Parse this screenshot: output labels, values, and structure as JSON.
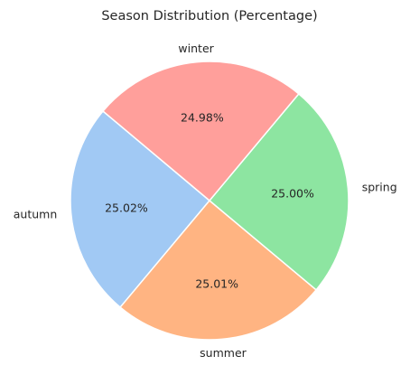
{
  "chart_data": {
    "type": "pie",
    "title": "Season Distribution (Percentage)",
    "categories": [
      "autumn",
      "summer",
      "spring",
      "winter"
    ],
    "values": [
      25.02,
      25.01,
      25.0,
      24.98
    ],
    "value_labels": [
      "25.02%",
      "25.01%",
      "25.00%",
      "24.98%"
    ],
    "colors": [
      "#a1c9f4",
      "#ffb482",
      "#8de5a1",
      "#ff9f9b"
    ],
    "start_angle_deg": 140,
    "direction": "counterclockwise"
  }
}
